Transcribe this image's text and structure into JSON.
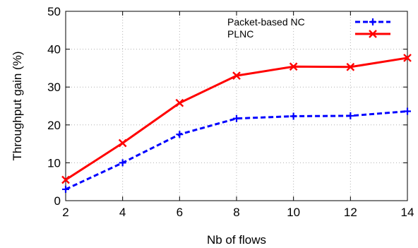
{
  "chart_data": {
    "type": "line",
    "xlabel": "Nb of flows",
    "ylabel": "Throughput gain (%)",
    "x": [
      2,
      4,
      6,
      8,
      10,
      12,
      14
    ],
    "xlim": [
      2,
      14
    ],
    "ylim": [
      0,
      50
    ],
    "xticks": [
      2,
      4,
      6,
      8,
      10,
      12,
      14
    ],
    "yticks": [
      0,
      10,
      20,
      30,
      40,
      50
    ],
    "grid": true,
    "legend_position": "top-right",
    "series": [
      {
        "name": "Packet-based NC",
        "values": [
          3.0,
          10.0,
          17.5,
          21.7,
          22.3,
          22.4,
          23.6
        ],
        "color": "#0000ff",
        "line_style": "dashed",
        "marker": "plus"
      },
      {
        "name": "PLNC",
        "values": [
          5.5,
          15.2,
          25.8,
          33.0,
          35.4,
          35.3,
          37.7
        ],
        "color": "#ff0000",
        "line_style": "solid",
        "marker": "cross"
      }
    ]
  }
}
